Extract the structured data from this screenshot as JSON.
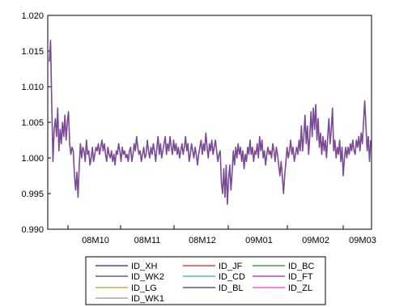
{
  "chart_data": {
    "type": "line",
    "title": "",
    "xlabel": "",
    "ylabel": "",
    "ylim": [
      0.99,
      1.02
    ],
    "grid": false,
    "legend_placement": "bottom",
    "x_tick_labels": [
      "08M10",
      "08M11",
      "08M12",
      "09M01",
      "09M02",
      "09M03"
    ],
    "y_tick_labels": [
      "0.990",
      "0.995",
      "1.000",
      "1.005",
      "1.010",
      "1.015",
      "1.020"
    ],
    "y_ticks": [
      0.99,
      0.995,
      1.0,
      1.005,
      1.01,
      1.015,
      1.02
    ],
    "series": [
      {
        "name": "ID_XH",
        "color": "#1f2a8c"
      },
      {
        "name": "ID_JF",
        "color": "#e02020"
      },
      {
        "name": "ID_BC",
        "color": "#1a8a1a"
      },
      {
        "name": "ID_WK2",
        "color": "#444444"
      },
      {
        "name": "ID_CD",
        "color": "#38a8b0"
      },
      {
        "name": "ID_FT",
        "color": "#9b2fa8"
      },
      {
        "name": "ID_LG",
        "color": "#b0a020"
      },
      {
        "name": "ID_BL",
        "color": "#2d3a6e"
      },
      {
        "name": "ID_ZL",
        "color": "#ff33dd"
      },
      {
        "name": "ID_WK1",
        "color": "#999999"
      }
    ],
    "visible_series_color": "#7a4a96",
    "values": [
      1.0135,
      1.0165,
      1.0075,
      0.9995,
      1.004,
      1.0055,
      1.003,
      1.007,
      1.001,
      1.004,
      1.002,
      1.005,
      1.003,
      1.006,
      1.0025,
      1.005,
      1.0065,
      1.002,
      1.0005,
      1.0015,
      1.001,
      0.9975,
      0.9955,
      0.998,
      0.9945,
      0.999,
      1.002,
      1.0,
      1.0015,
      1.001,
      0.9995,
      1.0025,
      1.0005,
      1.001,
      0.999,
      1.0,
      1.0015,
      0.9995,
      1.0005,
      1.0015,
      1.001,
      1.002,
      1.0005,
      1.0015,
      1.0025,
      1.001,
      1.002,
      1.0005,
      0.9995,
      1.0015,
      1.0005,
      1.0,
      1.001,
      0.9995,
      1.0005,
      0.999,
      1.001,
      1.0005,
      1.002,
      1.001,
      0.9995,
      1.0015,
      1.0005,
      1.001,
      1.0,
      1.0005,
      0.9995,
      1.001,
      1.0015,
      0.9995,
      1.0005,
      1.002,
      1.001,
      1.003,
      1.0015,
      1.0005,
      1.001,
      0.9995,
      1.0005,
      1.0015,
      1.0,
      1.0005,
      1.0025,
      1.001,
      1.0,
      1.0015,
      1.0005,
      1.002,
      1.001,
      0.9995,
      1.0015,
      1.003,
      1.0005,
      1.002,
      1.0,
      1.001,
      1.002,
      1.003,
      1.0005,
      1.002,
      1.001,
      1.003,
      1.0015,
      1.0005,
      1.0025,
      1.001,
      1.002,
      1.0005,
      1.0015,
      1.0,
      1.001,
      1.002,
      1.0005,
      1.0015,
      1.003,
      1.001,
      1.002,
      0.9995,
      1.0005,
      1.002,
      1.001,
      1.0,
      1.0015,
      1.0005,
      0.999,
      1.0005,
      1.0015,
      1.0025,
      1.0005,
      1.002,
      1.001,
      1.0035,
      1.0015,
      1.0,
      1.002,
      1.001,
      1.0025,
      1.0005,
      1.0015,
      1.0025,
      1.001,
      0.9995,
      1.0005,
      1.001,
      0.9965,
      0.995,
      0.9985,
      0.9945,
      0.999,
      0.9935,
      0.997,
      0.999,
      0.9955,
      0.998,
      1.001,
      0.999,
      1.0015,
      1.0,
      1.002,
      1.0005,
      1.0015,
      0.9995,
      1.001,
      0.9985,
      1.0005,
      0.9995,
      1.0015,
      1.0005,
      1.0025,
      1.0005,
      1.0015,
      0.9995,
      1.001,
      1.0005,
      1.002,
      1.0,
      1.003,
      1.001,
      1.0025,
      1.0,
      1.001,
      0.999,
      1.0005,
      1.0015,
      1.0005,
      1.001,
      1.0,
      1.002,
      1.001,
      0.9995,
      1.0015,
      1.0005,
      0.999,
      0.9975,
      0.9995,
      0.9975,
      0.995,
      0.9975,
      0.9995,
      1.0015,
      1.0,
      1.001,
      1.0025,
      1.0005,
      1.0015,
      0.9995,
      1.0005,
      1.0015,
      1.0005,
      1.0025,
      1.001,
      1.0045,
      1.001,
      1.003,
      1.006,
      1.002,
      1.0045,
      1.0005,
      1.003,
      1.0065,
      1.003,
      1.007,
      1.004,
      1.0075,
      1.0025,
      1.0055,
      1.0015,
      1.0035,
      1.0005,
      1.003,
      1.001,
      1.0025,
      1.0,
      1.003,
      1.0055,
      1.002,
      1.004,
      1.007,
      1.001,
      1.0025,
      1.0,
      1.0015,
      1.0005,
      1.0025,
      0.9995,
      1.0015,
      0.9975,
      1.0,
      1.0015,
      1.0,
      1.0015,
      1.0005,
      1.002,
      1.001,
      1.0025,
      1.001,
      1.0005,
      1.0025,
      1.0015,
      1.003,
      1.001,
      1.0035,
      1.002,
      1.005,
      1.008,
      1.0045,
      1.001,
      1.003,
      0.9995,
      1.0025
    ]
  }
}
